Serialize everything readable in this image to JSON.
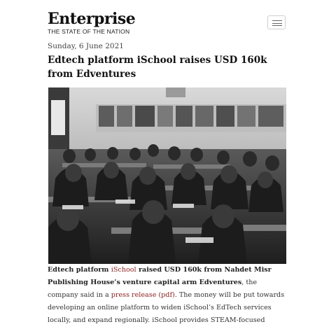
{
  "header": {
    "logo": "Enterprise",
    "tagline": "THE STATE OF THE NATION",
    "menu_icon": "hamburger-icon"
  },
  "article": {
    "date": "Sunday, 6 June 2021",
    "headline": "Edtech platform iSchool raises USD 160k from Edventures",
    "image_kind": "black-and-white classroom photo",
    "body": {
      "p1_intro": "Edtech platform ",
      "p1_link_ischool": "iSchool",
      "p1_rest_bold": " raised USD 160k from Nahdet Misr Publishing House’s venture capital arm Edventures",
      "p1_after": ", the company said in a ",
      "p1_link_press": "press release (pdf)",
      "p1_end": ". The money will be put towards developing an online platform to widen iSchool’s EdTech services locally, and expand regionally. iSchool provides STEAM-focused"
    }
  },
  "colors": {
    "link": "#8b1e1e",
    "text": "#333333",
    "heading": "#111111"
  }
}
